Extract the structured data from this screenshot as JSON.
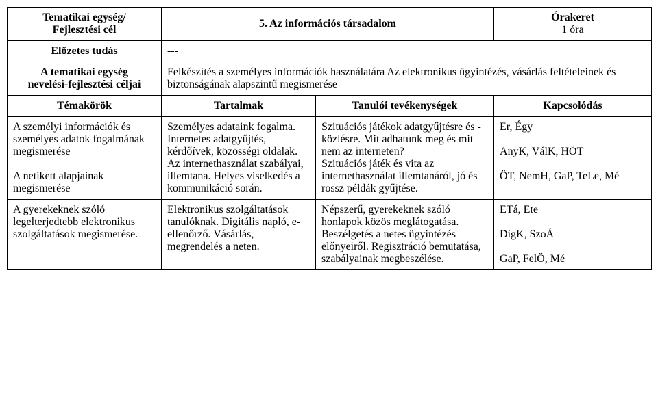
{
  "header": {
    "left_line1": "Tematikai egység/",
    "left_line2": "Fejlesztési cél",
    "title": "5.   Az információs társadalom",
    "right_label": "Órakeret",
    "right_value": "1 óra"
  },
  "row_prior": {
    "label": "Előzetes tudás",
    "value": "---"
  },
  "row_goals": {
    "label_line1": "A tematikai egység",
    "label_line2": "nevelési-fejlesztési céljai",
    "value": "Felkészítés a személyes információk használatára\nAz elektronikus ügyintézés, vásárlás feltételeinek és biztonságának alapszintű megismerése"
  },
  "subheader": {
    "c1": "Témakörök",
    "c2": "Tartalmak",
    "c3": "Tanulói tevékenységek",
    "c4": "Kapcsolódás"
  },
  "block1": {
    "topic1": "A személyi információk és személyes adatok fogalmának megismerése",
    "topic2": "A netikett alapjainak megismerése",
    "content1": "Személyes adataink fogalma. Internetes adatgyűjtés, kérdőívek, közösségi oldalak.",
    "content2": "Az internethasználat szabályai, illemtana. Helyes viselkedés a kommunikáció során.",
    "activity1": "Szituációs játékok adatgyűjtésre és -közlésre. Mit adhatunk meg és mit nem az interneten?",
    "activity2": "Szituációs játék és vita az internethasználat illemtanáról, jó és rossz példák gyűjtése.",
    "link1": "Er, Égy",
    "link2": "AnyK, VálK, HÖT",
    "link3": "ÖT, NemH, GaP, TeLe, Mé"
  },
  "block2": {
    "topic": "A gyerekeknek szóló legelterjedtebb elektronikus szolgáltatások megismerése.",
    "content": "Elektronikus szolgáltatások tanulóknak. Digitális napló, e-ellenőrző. Vásárlás, megrendelés a neten.",
    "activity": "Népszerű, gyerekeknek szóló honlapok közös meglátogatása. Beszélgetés a netes ügyintézés előnyeiről. Regisztráció bemutatása, szabályainak megbeszélése.",
    "link1": "ETá, Ete",
    "link2": "DigK, SzoÁ",
    "link3": "GaP, FelÖ, Mé"
  }
}
